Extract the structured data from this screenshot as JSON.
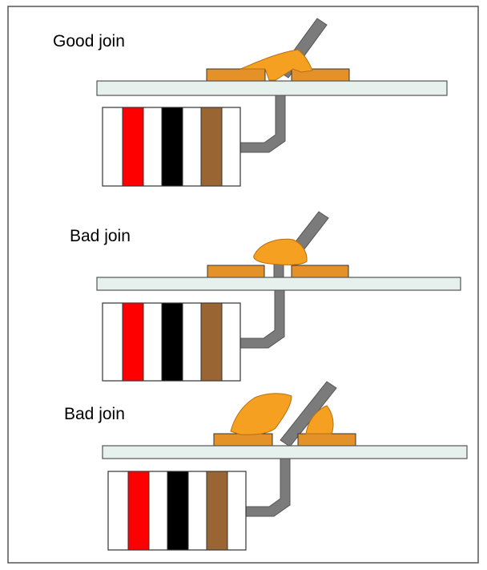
{
  "panels": [
    {
      "label": "Good join"
    },
    {
      "label": "Bad join"
    },
    {
      "label": "Bad join"
    }
  ],
  "colors": {
    "frame": "#555555",
    "board_fill": "#e6f1ee",
    "board_stroke": "#555555",
    "pad_fill": "#e5912a",
    "solder_fill": "#f5a020",
    "lead_fill": "#7b7b7b",
    "resistor_body": "#ffffff",
    "band_1": "#ff0000",
    "band_2": "#000000",
    "band_3": "#996633"
  }
}
